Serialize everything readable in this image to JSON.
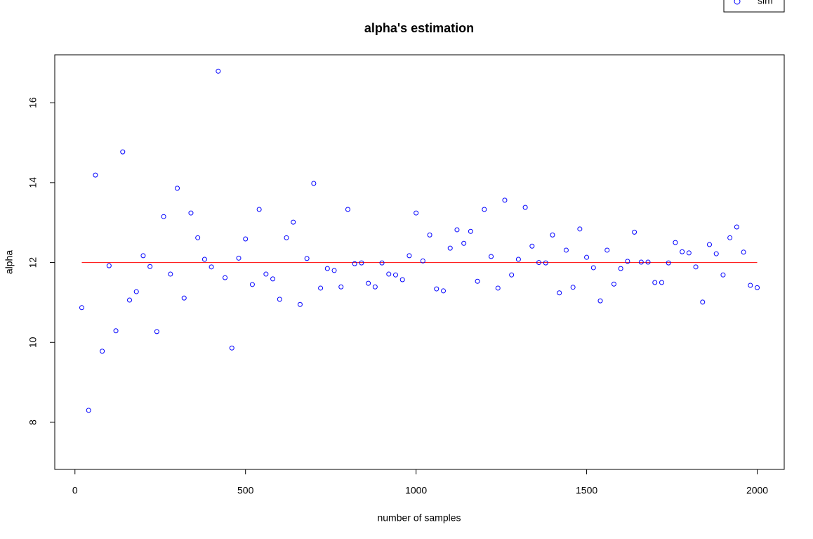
{
  "chart_data": {
    "type": "scatter",
    "title": "alpha's estimation",
    "xlabel": "number of samples",
    "ylabel": "alpha",
    "x": [
      20,
      40,
      60,
      80,
      100,
      120,
      140,
      160,
      180,
      200,
      220,
      240,
      260,
      280,
      300,
      320,
      340,
      360,
      380,
      400,
      420,
      440,
      460,
      480,
      500,
      520,
      540,
      560,
      580,
      600,
      620,
      640,
      660,
      680,
      700,
      720,
      740,
      760,
      780,
      800,
      820,
      840,
      860,
      880,
      900,
      920,
      940,
      960,
      980,
      1000,
      1020,
      1040,
      1060,
      1080,
      1100,
      1120,
      1140,
      1160,
      1180,
      1200,
      1220,
      1240,
      1260,
      1280,
      1300,
      1320,
      1340,
      1360,
      1380,
      1400,
      1420,
      1440,
      1460,
      1480,
      1500,
      1520,
      1540,
      1560,
      1580,
      1600,
      1620,
      1640,
      1660,
      1680,
      1700,
      1720,
      1740,
      1760,
      1780,
      1800,
      1820,
      1840,
      1860,
      1880,
      1900,
      1920,
      1940,
      1960,
      1980,
      2000
    ],
    "series": [
      {
        "name": "sim",
        "color": "blue",
        "values": [
          10.87,
          8.3,
          14.19,
          9.78,
          11.92,
          10.29,
          14.77,
          11.06,
          11.27,
          12.17,
          11.9,
          10.27,
          13.15,
          11.71,
          13.86,
          11.11,
          13.24,
          12.62,
          12.08,
          11.89,
          16.79,
          11.62,
          9.86,
          12.11,
          12.59,
          11.45,
          13.33,
          11.71,
          11.59,
          11.08,
          12.62,
          13.01,
          10.95,
          12.1,
          13.98,
          11.36,
          11.85,
          11.8,
          11.39,
          13.33,
          11.97,
          11.99,
          11.48,
          11.39,
          11.99,
          11.71,
          11.69,
          11.57,
          12.17,
          13.24,
          12.04,
          12.69,
          11.34,
          11.29,
          12.36,
          12.82,
          12.48,
          12.78,
          11.53,
          13.33,
          12.15,
          11.36,
          13.56,
          11.69,
          12.08,
          13.38,
          12.41,
          12.0,
          11.99,
          12.69,
          11.24,
          12.31,
          11.38,
          12.84,
          12.13,
          11.87,
          11.04,
          12.31,
          11.46,
          11.85,
          12.03,
          12.76,
          12.01,
          12.01,
          11.5,
          11.5,
          11.99,
          12.5,
          12.27,
          12.24,
          11.89,
          11.01,
          12.45,
          12.22,
          11.69,
          12.62,
          12.89,
          12.26,
          11.43,
          11.37
        ]
      }
    ],
    "hline": {
      "y": 12,
      "x": [
        20,
        2000
      ],
      "color": "red"
    },
    "xlim": [
      -59.2,
      2079.2
    ],
    "ylim": [
      6.82,
      17.2
    ],
    "xticks": [
      0,
      500,
      1000,
      1500,
      2000
    ],
    "yticks": [
      8,
      10,
      12,
      14,
      16
    ],
    "legend": "topright"
  }
}
